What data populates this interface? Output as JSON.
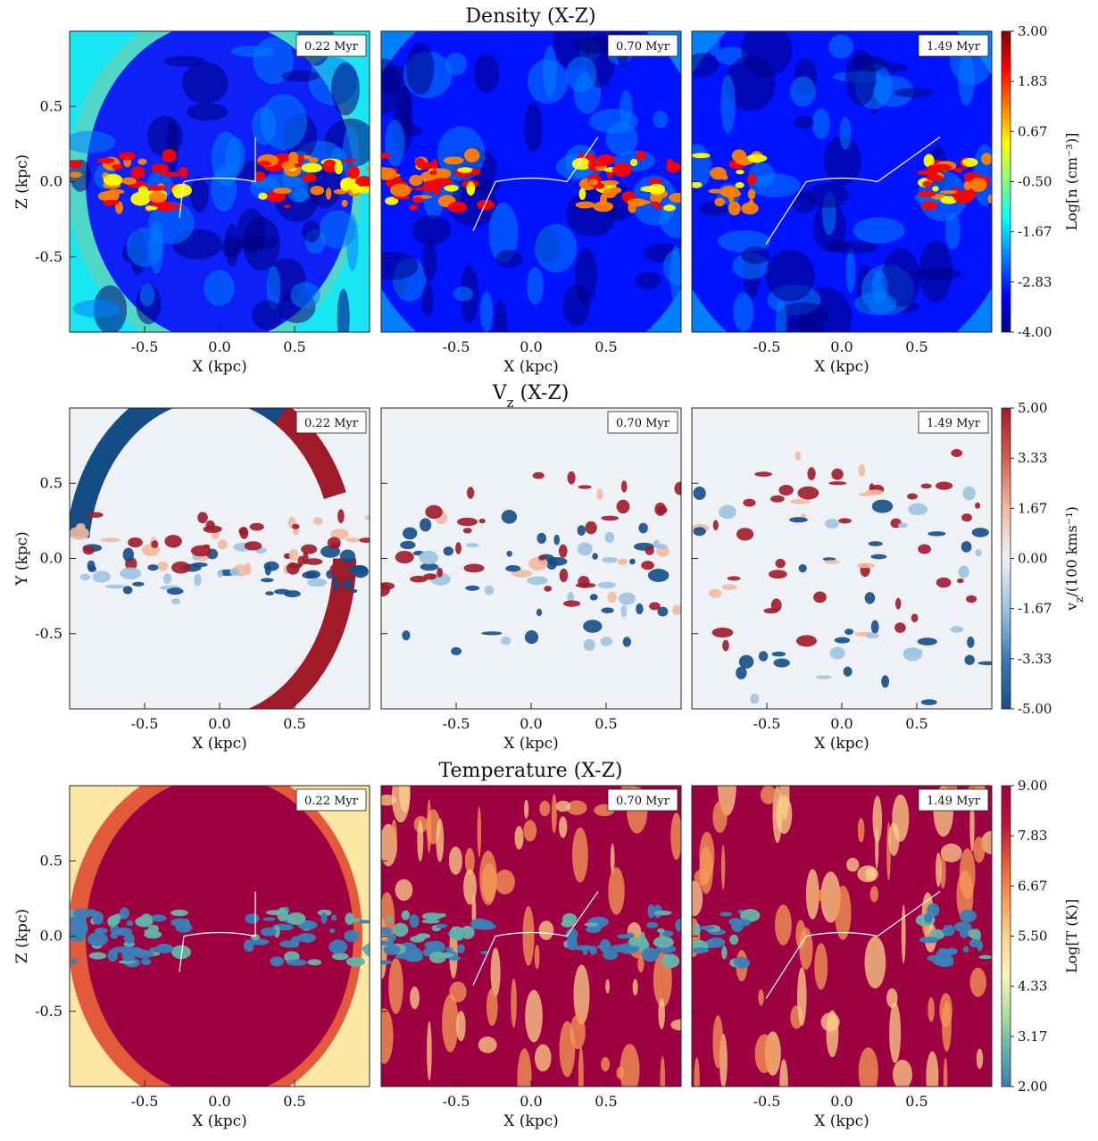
{
  "rows": [
    {
      "title": "Density (X-Z)",
      "title_sub": "",
      "ylabel": "Z (kpc)",
      "ylabel_sub": "",
      "xlabel": "X (kpc)",
      "cbar_label": "Log[n (cm⁻³)]",
      "cbar_ticks": [
        "3.00",
        "1.83",
        "0.67",
        "-0.50",
        "-1.67",
        "-2.83",
        "-4.00"
      ],
      "colormap": [
        "#00007f",
        "#0000ff",
        "#0080ff",
        "#00ffff",
        "#80ff80",
        "#ffff00",
        "#ff8000",
        "#ff0000",
        "#7f0000"
      ],
      "field": "density",
      "contour": true
    },
    {
      "title": "V",
      "title_sub": "z",
      "title_after": " (X-Z)",
      "ylabel": "Y (kpc)",
      "xlabel": "X (kpc)",
      "cbar_label": "v",
      "cbar_label_sub": "z",
      "cbar_label_after": "/(100 kms⁻¹)",
      "cbar_ticks": [
        "5.00",
        "3.33",
        "1.67",
        "0.00",
        "-1.67",
        "-3.33",
        "-5.00"
      ],
      "colormap": [
        "#144c86",
        "#3a7dba",
        "#9cc4e0",
        "#eef2f7",
        "#f2b9a0",
        "#d35f4d",
        "#a11a2a"
      ],
      "field": "velocity",
      "contour": false
    },
    {
      "title": "Temperature (X-Z)",
      "title_sub": "",
      "ylabel": "Z (kpc)",
      "xlabel": "X (kpc)",
      "cbar_label": "Log[T (K)]",
      "cbar_ticks": [
        "9.00",
        "7.83",
        "6.67",
        "5.50",
        "4.33",
        "3.17",
        "2.00"
      ],
      "colormap": [
        "#3a7fb8",
        "#64b4a8",
        "#b8e0a0",
        "#fff6b8",
        "#fdd08a",
        "#f59a55",
        "#e35a3a",
        "#b8143a",
        "#9e0142"
      ],
      "field": "temperature",
      "contour": true
    }
  ],
  "panels": [
    {
      "time_label": "0.22 Myr",
      "seed": 11
    },
    {
      "time_label": "0.70 Myr",
      "seed": 23
    },
    {
      "time_label": "1.49 Myr",
      "seed": 37
    }
  ],
  "chart_data": {
    "type": "heatmap",
    "layout": "3 rows x 3 columns of simulation slice images with one colorbar per row",
    "x_axis": {
      "label": "X (kpc)",
      "range": [
        -1.0,
        1.0
      ],
      "ticks": [
        -0.5,
        0.0,
        0.5
      ]
    },
    "y_axis_ticks": [
      0.5,
      0.0,
      -0.5
    ],
    "y_axis_range": [
      -1.0,
      1.0
    ],
    "rows": [
      {
        "quantity": "density",
        "title": "Density (X-Z)",
        "ylabel": "Z (kpc)",
        "colorbar": {
          "label": "Log[n (cm⁻³)]",
          "range": [
            -4.0,
            3.0
          ]
        }
      },
      {
        "quantity": "vz",
        "title": "Vz (X-Z)",
        "ylabel": "Y (kpc)",
        "colorbar": {
          "label": "vz/(100 kms⁻¹)",
          "range": [
            -5.0,
            5.0
          ]
        }
      },
      {
        "quantity": "temperature",
        "title": "Temperature (X-Z)",
        "ylabel": "Z (kpc)",
        "colorbar": {
          "label": "Log[T (K)]",
          "range": [
            2.0,
            9.0
          ]
        }
      }
    ],
    "times": [
      "0.22 Myr",
      "0.70 Myr",
      "1.49 Myr"
    ]
  }
}
